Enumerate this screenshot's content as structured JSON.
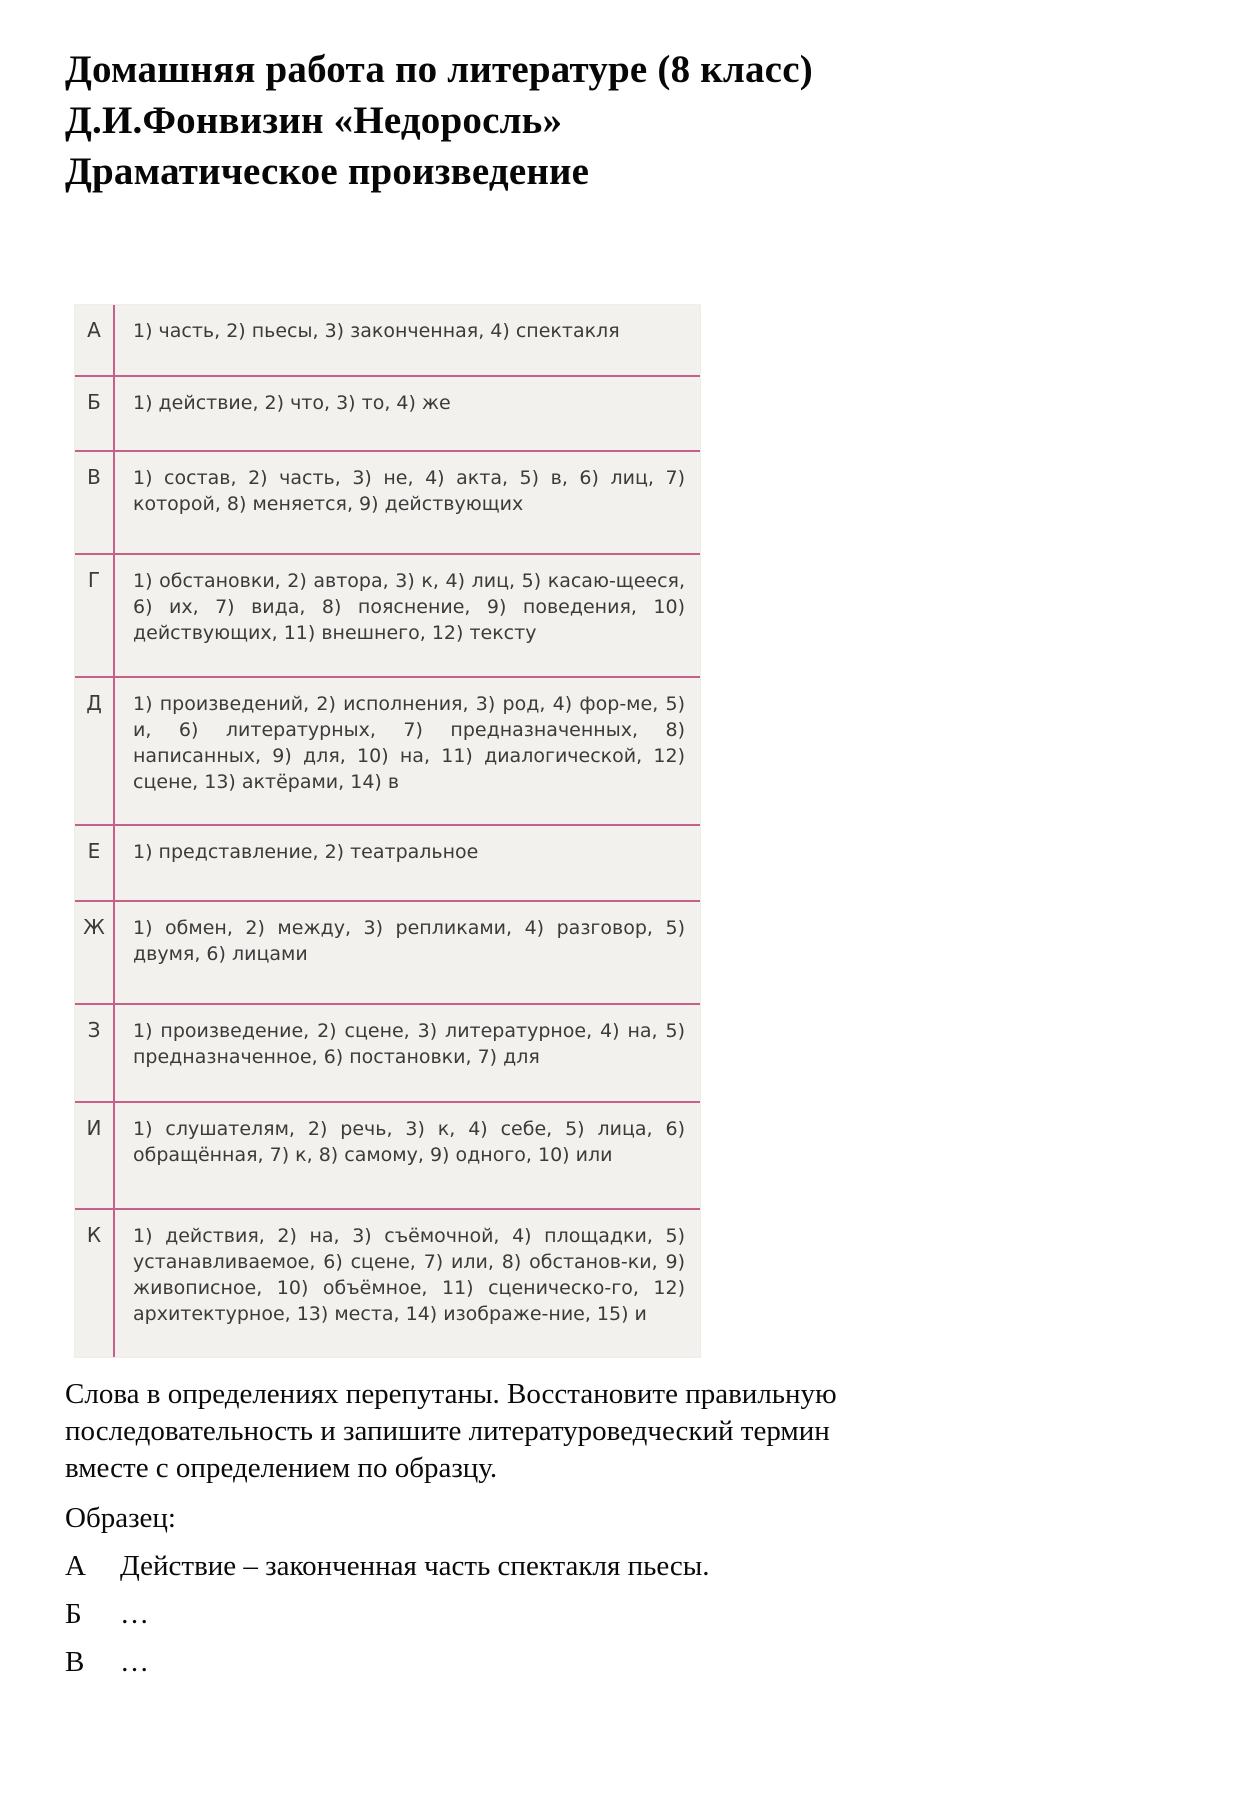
{
  "title": {
    "line1": "Домашняя работа по литературе (8 класс)",
    "line2": "Д.И.Фонвизин «Недоросль»",
    "line3": "Драматическое произведение"
  },
  "table": {
    "rows": [
      {
        "letter": "А",
        "text": "1) часть, 2) пьесы, 3) законченная, 4) спектакля"
      },
      {
        "letter": "Б",
        "text": "1) действие, 2) что, 3) то, 4) же"
      },
      {
        "letter": "В",
        "text": "1) состав, 2) часть, 3) не, 4) акта, 5) в, 6) лиц, 7) которой, 8) меняется, 9) действующих"
      },
      {
        "letter": "Г",
        "text": "1) обстановки, 2) автора, 3) к, 4) лиц, 5) касаю-щееся, 6) их, 7) вида, 8) пояснение, 9) поведения, 10) действующих, 11) внешнего, 12) тексту"
      },
      {
        "letter": "Д",
        "text": "1) произведений, 2) исполнения, 3) род, 4) фор-ме, 5) и, 6) литературных, 7) предназначенных, 8) написанных, 9) для, 10) на, 11) диалогической, 12) сцене, 13) актёрами, 14) в"
      },
      {
        "letter": "Е",
        "text": "1) представление, 2) театральное"
      },
      {
        "letter": "Ж",
        "text": "1) обмен, 2) между, 3) репликами, 4) разговор, 5) двумя, 6) лицами"
      },
      {
        "letter": "З",
        "text": "1) произведение, 2) сцене, 3) литературное, 4) на, 5) предназначенное, 6) постановки, 7) для"
      },
      {
        "letter": "И",
        "text": "1) слушателям, 2) речь, 3) к, 4) себе, 5) лица, 6) обращённая, 7) к, 8) самому, 9) одного, 10) или"
      },
      {
        "letter": "К",
        "text": "1) действия, 2) на, 3) съёмочной, 4) площадки, 5) устанавливаемое, 6) сцене, 7) или, 8) обстанов-ки, 9) живописное, 10) объёмное, 11) сценическо-го, 12) архитектурное, 13) места, 14) изображе-ние, 15) и"
      }
    ]
  },
  "footer": {
    "instructions": "Слова в определениях перепутаны. Восстановите правильную\nпоследовательность и запишите литературоведческий термин\nвместе с определением по образцу.",
    "sample_label": "Образец:",
    "sample_rows": [
      {
        "letter": "А",
        "text": "Действие – законченная часть спектакля пьесы."
      },
      {
        "letter": "Б",
        "text": "…"
      },
      {
        "letter": "В",
        "text": "…"
      }
    ]
  },
  "colors": {
    "table_background": "#f3f1ed",
    "rule_line": "#c4608a",
    "table_text": "#3b3b3b",
    "body_text": "#0a0a0a"
  }
}
